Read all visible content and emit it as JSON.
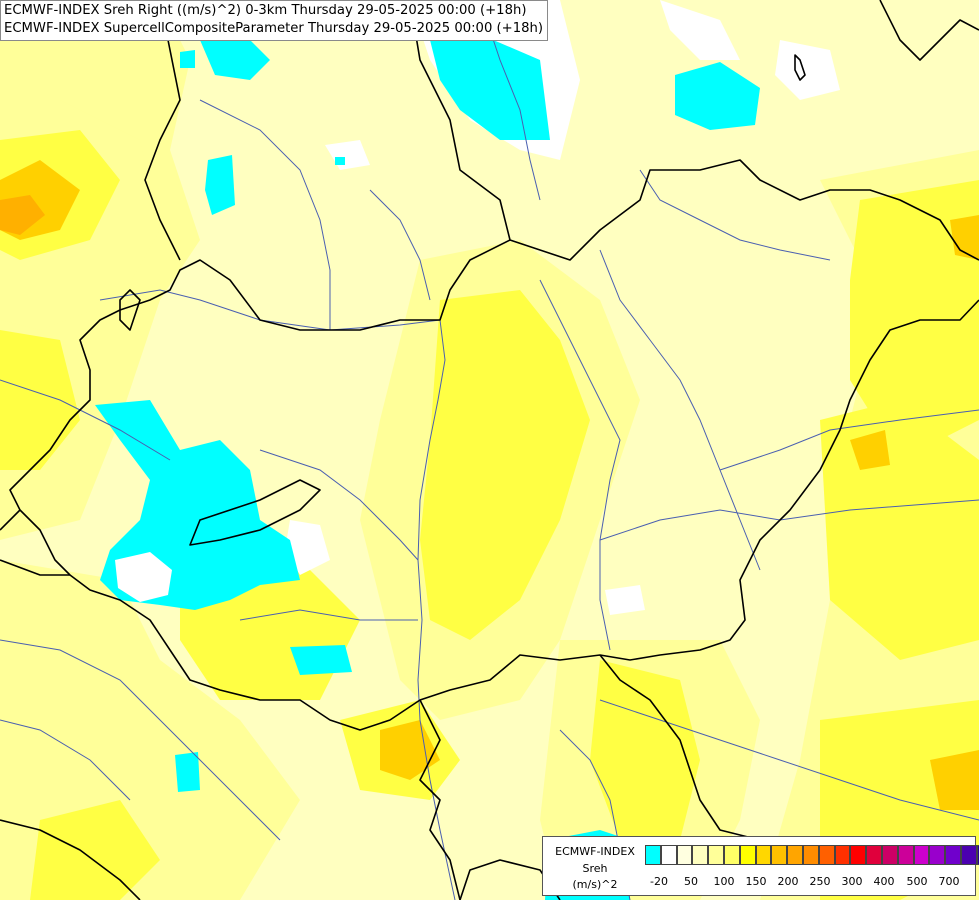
{
  "title": {
    "line1": "ECMWF-INDEX Sreh Right ((m/s)^2) 0-3km Thursday 29-05-2025 00:00 (+18h)",
    "line2": "ECMWF-INDEX SupercellCompositeParameter Thursday 29-05-2025 00:00 (+18h)"
  },
  "legend": {
    "model": "ECMWF-INDEX",
    "parameter": "Sreh",
    "unit": "(m/s)^2",
    "swatch_colors": [
      "#00ffff",
      "#ffffff",
      "#ffffe0",
      "#ffffc0",
      "#ffff99",
      "#ffff66",
      "#ffff00",
      "#ffd700",
      "#ffc000",
      "#ffa500",
      "#ff8c00",
      "#ff6000",
      "#ff3000",
      "#ff0000",
      "#e0003c",
      "#cc0066",
      "#cc0099",
      "#cc00cc",
      "#9900cc",
      "#7000cc",
      "#4b00b0",
      "#2a0090",
      "#000070"
    ],
    "tick_labels": [
      "-20",
      "50",
      "100",
      "150",
      "200",
      "250",
      "300",
      "400",
      "500",
      "700"
    ]
  },
  "colors": {
    "background": "#ffffc0",
    "pale": "#ffffa8",
    "light_yellow": "#ffff80",
    "yellow": "#ffff33",
    "gold": "#ffe000",
    "orange": "#ffc000",
    "cyan": "#00ffff",
    "white": "#ffffff",
    "border": "#000000",
    "river": "#4a5fb0"
  }
}
